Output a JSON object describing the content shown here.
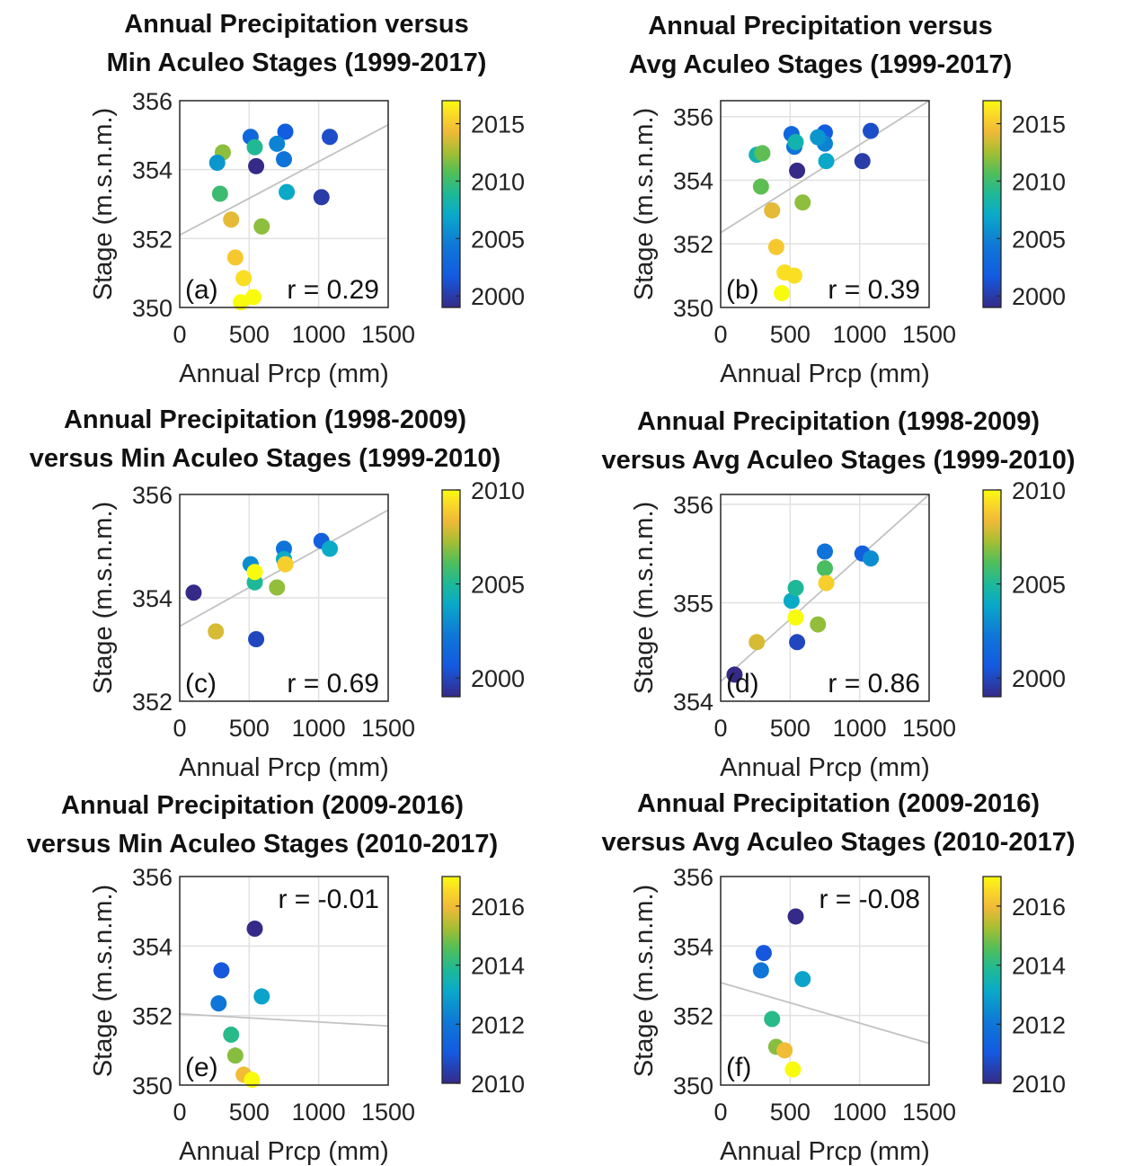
{
  "chart_data": [
    {
      "type": "scatter",
      "title": [
        "Annual Precipitation versus",
        "Min Aculeo Stages (1999-2017)"
      ],
      "xlabel": "Annual Prcp (mm)",
      "ylabel": "Stage (m.s.n.m.)",
      "xlim": [
        0,
        1500
      ],
      "ylim": [
        350,
        356
      ],
      "xticks": [
        0,
        500,
        1000,
        1500
      ],
      "yticks": [
        350,
        352,
        354,
        356
      ],
      "grid": true,
      "panel_label": "(a)",
      "annotation": "r = 0.29",
      "colorbar": {
        "range": [
          1999,
          2017
        ],
        "ticks": [
          2000,
          2005,
          2010,
          2015
        ]
      },
      "fit_line": [
        [
          0,
          352.1
        ],
        [
          1500,
          355.3
        ]
      ],
      "points": [
        {
          "x": 310,
          "y": 354.5,
          "year": 2012
        },
        {
          "x": 550,
          "y": 354.1,
          "year": 1999
        },
        {
          "x": 1020,
          "y": 353.2,
          "year": 2000
        },
        {
          "x": 1080,
          "y": 354.95,
          "year": 2001
        },
        {
          "x": 760,
          "y": 355.1,
          "year": 2002
        },
        {
          "x": 510,
          "y": 354.95,
          "year": 2003
        },
        {
          "x": 750,
          "y": 354.3,
          "year": 2004
        },
        {
          "x": 700,
          "y": 354.75,
          "year": 2005
        },
        {
          "x": 270,
          "y": 354.2,
          "year": 2006
        },
        {
          "x": 770,
          "y": 353.35,
          "year": 2007
        },
        {
          "x": 540,
          "y": 354.65,
          "year": 2009
        },
        {
          "x": 290,
          "y": 353.3,
          "year": 2010
        },
        {
          "x": 590,
          "y": 352.35,
          "year": 2012
        },
        {
          "x": 370,
          "y": 352.55,
          "year": 2014
        },
        {
          "x": 400,
          "y": 351.45,
          "year": 2015
        },
        {
          "x": 460,
          "y": 350.85,
          "year": 2016
        },
        {
          "x": 530,
          "y": 350.3,
          "year": 2017
        },
        {
          "x": 440,
          "y": 350.15,
          "year": 2017
        }
      ]
    },
    {
      "type": "scatter",
      "title": [
        "Annual Precipitation versus",
        "Avg Aculeo Stages (1999-2017)"
      ],
      "xlabel": "Annual Prcp (mm)",
      "ylabel": "Stage (m.s.n.m.)",
      "xlim": [
        0,
        1500
      ],
      "ylim": [
        350,
        356.5
      ],
      "xticks": [
        0,
        500,
        1000,
        1500
      ],
      "yticks": [
        350,
        352,
        354,
        356
      ],
      "grid": true,
      "panel_label": "(b)",
      "annotation": "r = 0.39",
      "colorbar": {
        "range": [
          1999,
          2017
        ],
        "ticks": [
          2000,
          2005,
          2010,
          2015
        ]
      },
      "fit_line": [
        [
          0,
          352.35
        ],
        [
          1500,
          356.5
        ]
      ],
      "points": [
        {
          "x": 550,
          "y": 354.3,
          "year": 1999
        },
        {
          "x": 1020,
          "y": 354.6,
          "year": 2000
        },
        {
          "x": 1080,
          "y": 355.55,
          "year": 2001
        },
        {
          "x": 750,
          "y": 355.5,
          "year": 2002
        },
        {
          "x": 510,
          "y": 355.45,
          "year": 2003
        },
        {
          "x": 530,
          "y": 355.05,
          "year": 2004
        },
        {
          "x": 750,
          "y": 355.15,
          "year": 2005
        },
        {
          "x": 700,
          "y": 355.35,
          "year": 2006
        },
        {
          "x": 760,
          "y": 354.6,
          "year": 2007
        },
        {
          "x": 540,
          "y": 355.2,
          "year": 2008
        },
        {
          "x": 260,
          "y": 354.8,
          "year": 2008
        },
        {
          "x": 300,
          "y": 354.85,
          "year": 2011
        },
        {
          "x": 290,
          "y": 353.8,
          "year": 2011
        },
        {
          "x": 590,
          "y": 353.3,
          "year": 2012
        },
        {
          "x": 370,
          "y": 353.05,
          "year": 2014
        },
        {
          "x": 400,
          "y": 351.9,
          "year": 2015
        },
        {
          "x": 460,
          "y": 351.1,
          "year": 2016
        },
        {
          "x": 530,
          "y": 351.0,
          "year": 2016
        },
        {
          "x": 440,
          "y": 350.45,
          "year": 2017
        }
      ]
    },
    {
      "type": "scatter",
      "title": [
        "Annual Precipitation (1998-2009)",
        "versus Min Aculeo Stages (1999-2010)"
      ],
      "xlabel": "Annual Prcp (mm)",
      "ylabel": "Stage (m.s.n.m.)",
      "xlim": [
        0,
        1500
      ],
      "ylim": [
        352,
        356
      ],
      "xticks": [
        0,
        500,
        1000,
        1500
      ],
      "yticks": [
        352,
        354,
        356
      ],
      "grid": true,
      "panel_label": "(c)",
      "annotation": "r = 0.69",
      "colorbar": {
        "range": [
          1999,
          2010
        ],
        "ticks": [
          2000,
          2005,
          2010
        ]
      },
      "fit_line": [
        [
          0,
          353.45
        ],
        [
          1500,
          355.7
        ]
      ],
      "points": [
        {
          "x": 100,
          "y": 354.1,
          "year": 1999
        },
        {
          "x": 550,
          "y": 353.2,
          "year": 2000
        },
        {
          "x": 1020,
          "y": 355.1,
          "year": 2001
        },
        {
          "x": 750,
          "y": 354.95,
          "year": 2002
        },
        {
          "x": 510,
          "y": 354.65,
          "year": 2003
        },
        {
          "x": 1080,
          "y": 354.95,
          "year": 2004
        },
        {
          "x": 750,
          "y": 354.75,
          "year": 2004
        },
        {
          "x": 540,
          "y": 354.3,
          "year": 2005
        },
        {
          "x": 700,
          "y": 354.2,
          "year": 2007
        },
        {
          "x": 260,
          "y": 353.35,
          "year": 2008
        },
        {
          "x": 760,
          "y": 354.65,
          "year": 2009
        },
        {
          "x": 540,
          "y": 354.5,
          "year": 2010
        }
      ]
    },
    {
      "type": "scatter",
      "title": [
        "Annual Precipitation (1998-2009)",
        "versus Avg Aculeo Stages (1999-2010)"
      ],
      "xlabel": "Annual Prcp (mm)",
      "ylabel": "Stage (m.s.n.m.)",
      "xlim": [
        0,
        1500
      ],
      "ylim": [
        354,
        356.1
      ],
      "xticks": [
        0,
        500,
        1000,
        1500
      ],
      "yticks": [
        354,
        355,
        356
      ],
      "grid": true,
      "panel_label": "(d)",
      "annotation": "r = 0.86",
      "colorbar": {
        "range": [
          1999,
          2010
        ],
        "ticks": [
          2000,
          2005,
          2010
        ]
      },
      "fit_line": [
        [
          0,
          354.2
        ],
        [
          1500,
          356.1
        ]
      ],
      "points": [
        {
          "x": 100,
          "y": 354.27,
          "year": 1999
        },
        {
          "x": 550,
          "y": 354.6,
          "year": 2000
        },
        {
          "x": 1020,
          "y": 355.5,
          "year": 2001
        },
        {
          "x": 750,
          "y": 355.52,
          "year": 2002
        },
        {
          "x": 1080,
          "y": 355.45,
          "year": 2003
        },
        {
          "x": 510,
          "y": 355.02,
          "year": 2004
        },
        {
          "x": 540,
          "y": 355.15,
          "year": 2005
        },
        {
          "x": 750,
          "y": 355.35,
          "year": 2006
        },
        {
          "x": 700,
          "y": 354.78,
          "year": 2007
        },
        {
          "x": 260,
          "y": 354.6,
          "year": 2008
        },
        {
          "x": 760,
          "y": 355.2,
          "year": 2009
        },
        {
          "x": 540,
          "y": 354.85,
          "year": 2010
        }
      ]
    },
    {
      "type": "scatter",
      "title": [
        "Annual Precipitation (2009-2016)",
        "versus Min Aculeo Stages (2010-2017)"
      ],
      "xlabel": "Annual Prcp (mm)",
      "ylabel": "Stage (m.s.n.m.)",
      "xlim": [
        0,
        1500
      ],
      "ylim": [
        350,
        356
      ],
      "xticks": [
        0,
        500,
        1000,
        1500
      ],
      "yticks": [
        350,
        352,
        354,
        356
      ],
      "grid": true,
      "panel_label": "(e)",
      "annotation": "r = -0.01",
      "colorbar": {
        "range": [
          2010,
          2017
        ],
        "ticks": [
          2010,
          2012,
          2014,
          2016
        ]
      },
      "fit_line": [
        [
          0,
          352.05
        ],
        [
          1500,
          351.7
        ]
      ],
      "points": [
        {
          "x": 540,
          "y": 354.5,
          "year": 2010
        },
        {
          "x": 300,
          "y": 353.3,
          "year": 2011
        },
        {
          "x": 280,
          "y": 352.35,
          "year": 2012
        },
        {
          "x": 590,
          "y": 352.55,
          "year": 2013
        },
        {
          "x": 370,
          "y": 351.45,
          "year": 2014
        },
        {
          "x": 400,
          "y": 350.85,
          "year": 2015
        },
        {
          "x": 460,
          "y": 350.3,
          "year": 2016
        },
        {
          "x": 520,
          "y": 350.15,
          "year": 2017
        }
      ]
    },
    {
      "type": "scatter",
      "title": [
        "Annual Precipitation (2009-2016)",
        "versus Avg Aculeo Stages (2010-2017)"
      ],
      "xlabel": "Annual Prcp (mm)",
      "ylabel": "Stage (m.s.n.m.)",
      "xlim": [
        0,
        1500
      ],
      "ylim": [
        350,
        356
      ],
      "xticks": [
        0,
        500,
        1000,
        1500
      ],
      "yticks": [
        350,
        352,
        354,
        356
      ],
      "grid": true,
      "panel_label": "(f)",
      "annotation": "r = -0.08",
      "colorbar": {
        "range": [
          2010,
          2017
        ],
        "ticks": [
          2010,
          2012,
          2014,
          2016
        ]
      },
      "fit_line": [
        [
          0,
          352.95
        ],
        [
          1500,
          351.2
        ]
      ],
      "points": [
        {
          "x": 540,
          "y": 354.85,
          "year": 2010
        },
        {
          "x": 310,
          "y": 353.8,
          "year": 2011
        },
        {
          "x": 290,
          "y": 353.3,
          "year": 2012
        },
        {
          "x": 590,
          "y": 353.05,
          "year": 2013
        },
        {
          "x": 370,
          "y": 351.9,
          "year": 2014
        },
        {
          "x": 400,
          "y": 351.1,
          "year": 2015
        },
        {
          "x": 460,
          "y": 351.0,
          "year": 2016
        },
        {
          "x": 520,
          "y": 350.45,
          "year": 2017
        }
      ]
    }
  ]
}
